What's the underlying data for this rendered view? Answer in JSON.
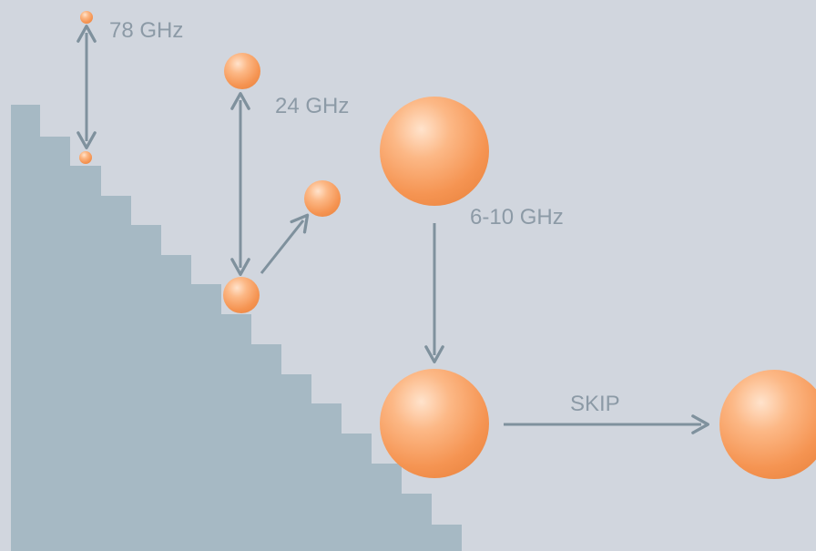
{
  "labels": {
    "f78": "78 GHz",
    "f24": "24 GHz",
    "f610": "6-10 GHz",
    "skip": "SKIP"
  },
  "colors": {
    "background": "#d1d6de",
    "staircase": "#a6b9c4",
    "arrow": "#7f919d",
    "label": "#8c9aa6",
    "ball_light": "#ffe3cc",
    "ball_mid": "#fba56b",
    "ball_dark": "#ee8a46"
  }
}
